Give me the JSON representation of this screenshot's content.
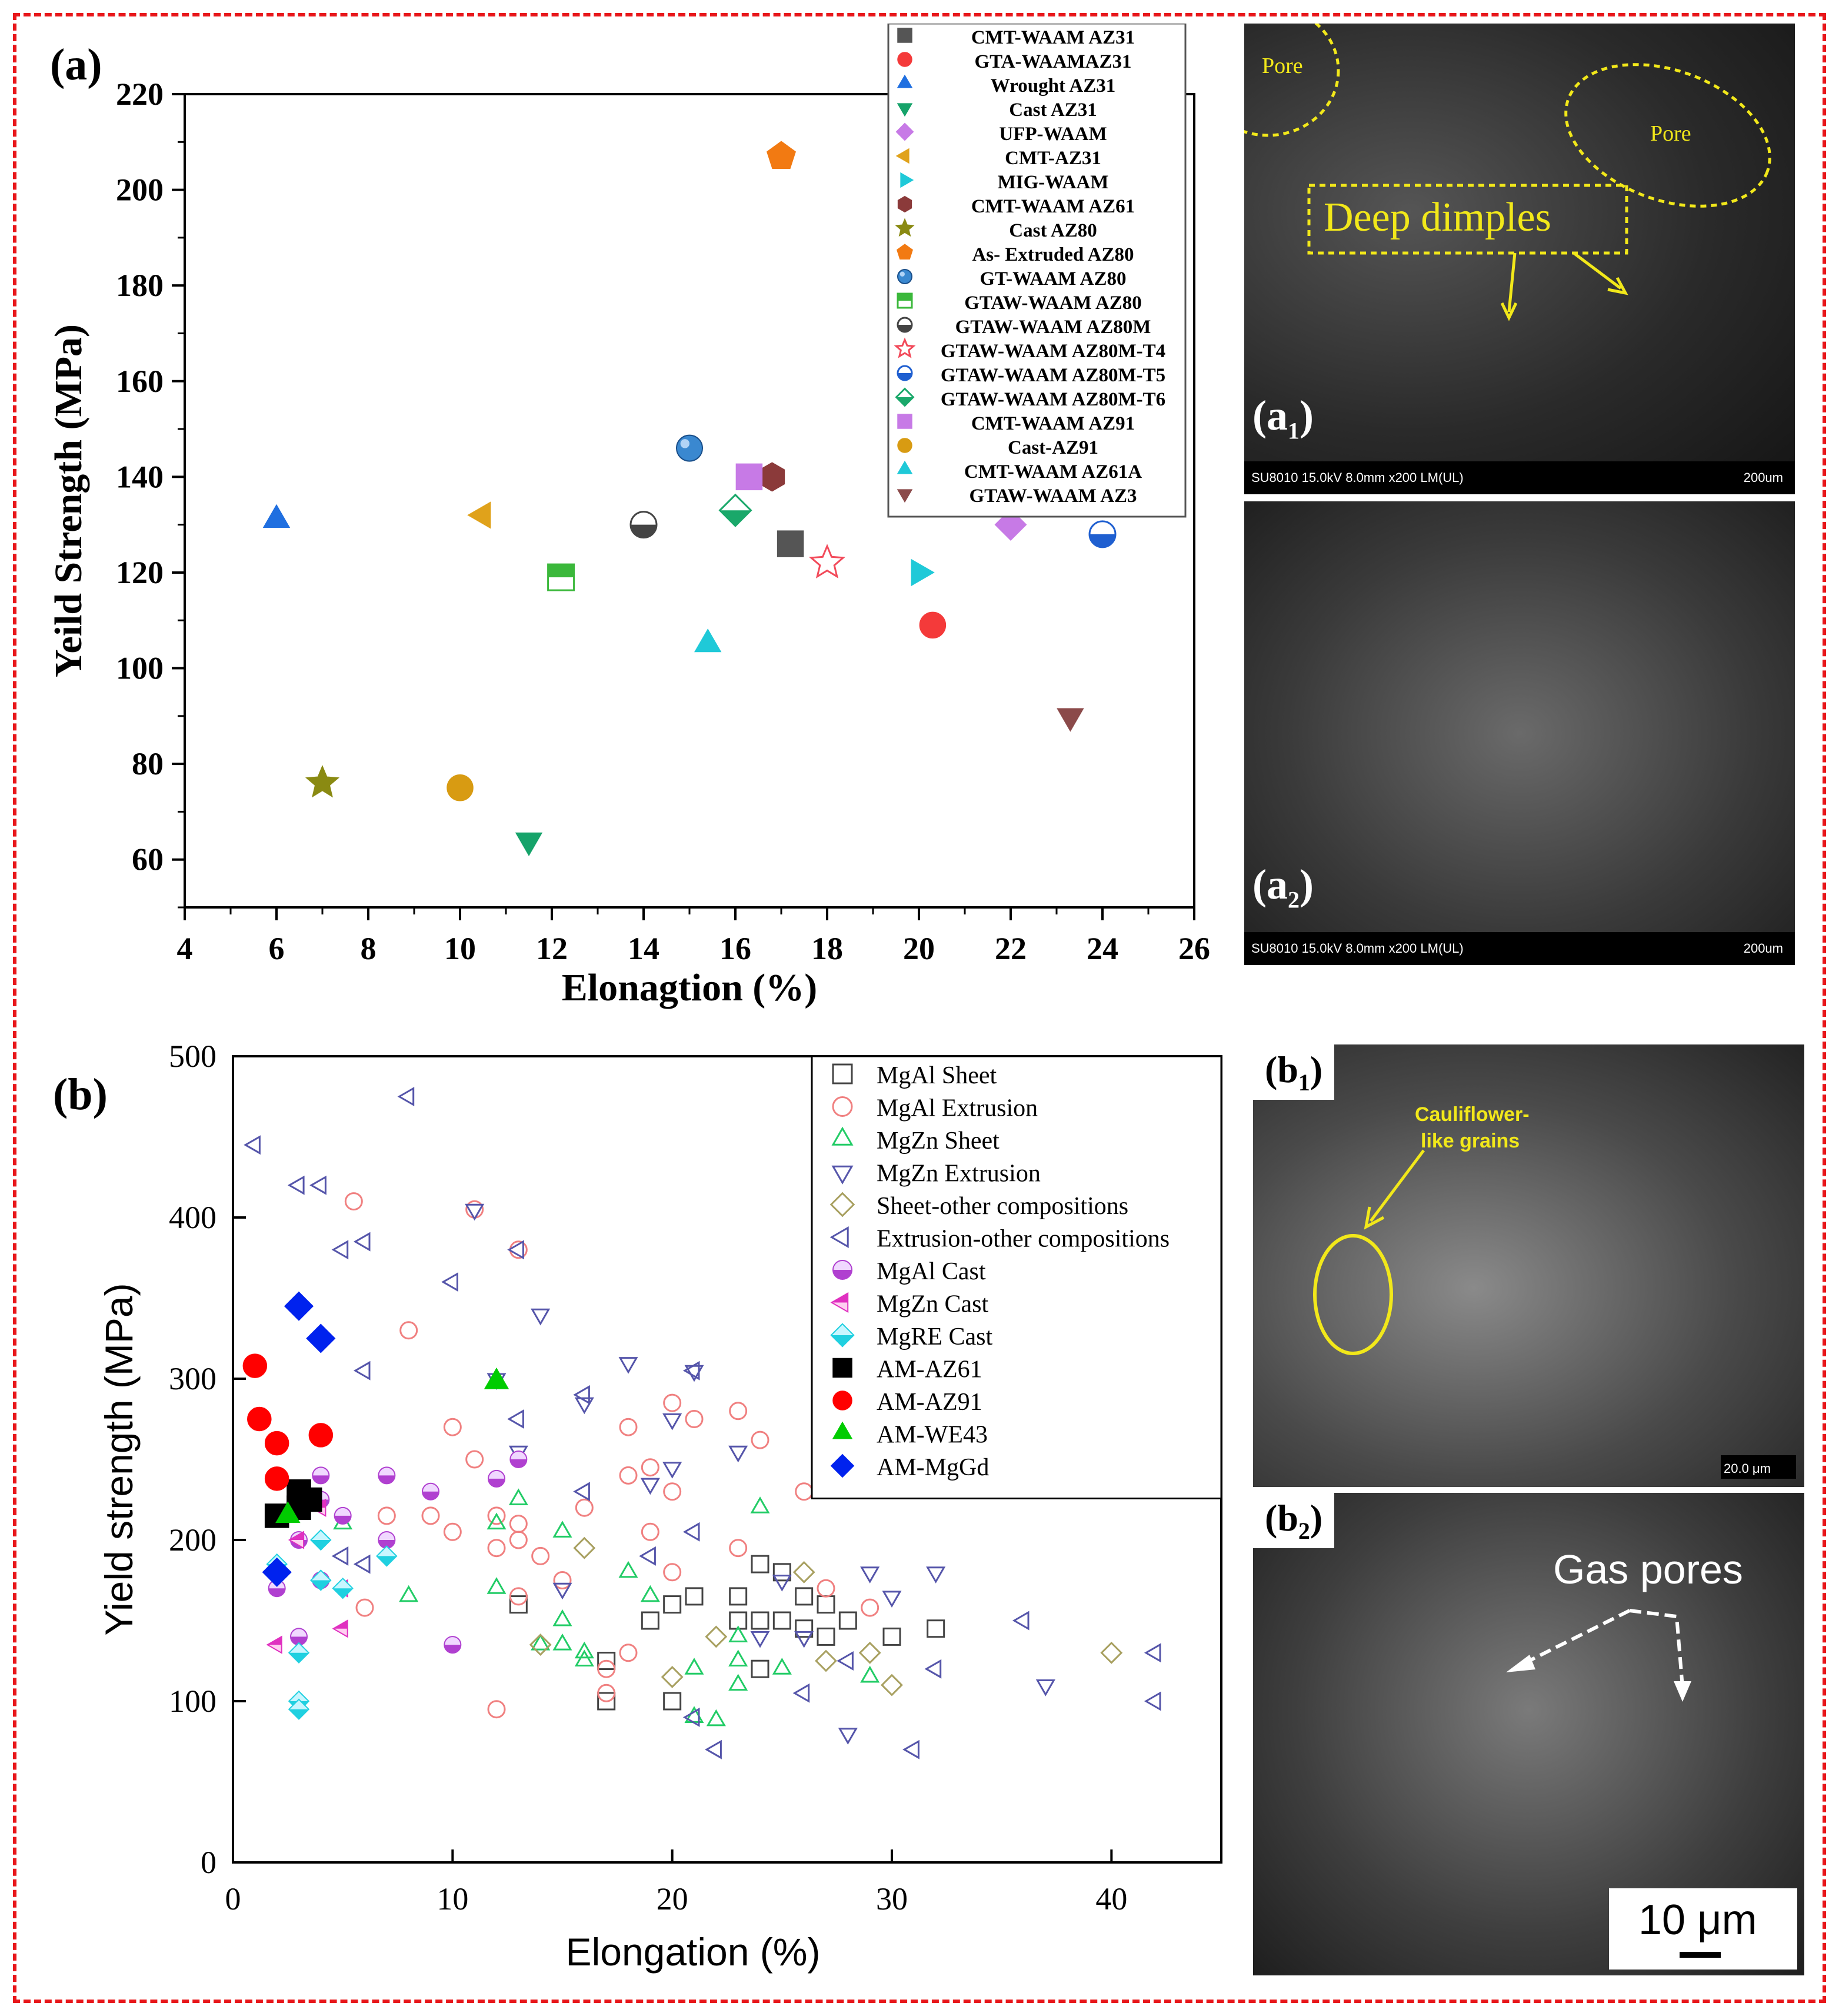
{
  "panel_a": {
    "label": "(a)",
    "sem_a1_label": "(a",
    "sem_a1_sub": "1",
    "sem_a1_close": ")",
    "sem_a2_label": "(a",
    "sem_a2_sub": "2",
    "sem_a2_close": ")",
    "sem_bar_left": "SU8010 15.0kV 8.0mm x200 LM(UL)",
    "sem_bar_right": "200um",
    "pore_label_1": "Pore",
    "pore_label_2": "Pore",
    "dimples_label": "Deep dimples"
  },
  "panel_b": {
    "label": "(b)",
    "sem_b1_label": "(b",
    "sem_b1_sub": "1",
    "sem_b1_close": ")",
    "sem_b2_label": "(b",
    "sem_b2_sub": "2",
    "sem_b2_close": ")",
    "cauliflower_label_1": "Cauliflower-",
    "cauliflower_label_2": "like grains",
    "gas_pores_label": "Gas pores",
    "scale_b1": "20.0 μm",
    "scale_b2": "10 μm"
  },
  "colors": {
    "frame": "#e8171b",
    "sem_yellow": "#f2e81a"
  },
  "chart_data": [
    {
      "type": "scatter",
      "title": "",
      "xlabel": "Elonagtion (%)",
      "ylabel": "Yeild Strength (MPa)",
      "xlim": [
        4,
        26
      ],
      "ylim": [
        50,
        220
      ],
      "xticks": [
        4,
        6,
        8,
        10,
        12,
        14,
        16,
        18,
        20,
        22,
        24,
        26
      ],
      "yticks": [
        60,
        80,
        100,
        120,
        140,
        160,
        180,
        200,
        220
      ],
      "legend_position": "top-right",
      "series": [
        {
          "name": "CMT-WAAM AZ31",
          "marker": "square",
          "color": "#555555",
          "x": 17.2,
          "y": 126
        },
        {
          "name": "GTA-WAAMAZ31",
          "marker": "circle",
          "color": "#f43a3a",
          "x": 20.3,
          "y": 109
        },
        {
          "name": "Wrought AZ31",
          "marker": "triangle-up",
          "color": "#1f6fe0",
          "x": 6.0,
          "y": 131
        },
        {
          "name": "Cast AZ31",
          "marker": "triangle-down",
          "color": "#16a36a",
          "x": 11.5,
          "y": 64
        },
        {
          "name": "UFP-WAAM",
          "marker": "diamond",
          "color": "#c77ae6",
          "x": 22.0,
          "y": 130
        },
        {
          "name": "CMT-AZ31",
          "marker": "triangle-left",
          "color": "#e0a21b",
          "x": 10.5,
          "y": 132
        },
        {
          "name": "MIG-WAAM",
          "marker": "triangle-right",
          "color": "#1fc9d8",
          "x": 20.0,
          "y": 120
        },
        {
          "name": "CMT-WAAM AZ61",
          "marker": "hexagon",
          "color": "#8b3a3a",
          "x": 16.8,
          "y": 140
        },
        {
          "name": "Cast AZ80",
          "marker": "star",
          "color": "#8a8a12",
          "x": 7.0,
          "y": 76
        },
        {
          "name": "As- Extruded AZ80",
          "marker": "pentagon",
          "color": "#f27a12",
          "x": 17.0,
          "y": 207
        },
        {
          "name": "GT-WAAM AZ80",
          "marker": "sphere",
          "color": "#3a88d0",
          "x": 15.0,
          "y": 146
        },
        {
          "name": "GTAW-WAAM AZ80",
          "marker": "half-square",
          "color": "#3bb83b",
          "x": 12.2,
          "y": 119
        },
        {
          "name": "GTAW-WAAM AZ80M",
          "marker": "half-circle",
          "color": "#444444",
          "x": 14.0,
          "y": 130
        },
        {
          "name": "GTAW-WAAM AZ80M-T4",
          "marker": "open-star",
          "color": "#f24a5a",
          "x": 18.0,
          "y": 122
        },
        {
          "name": "GTAW-WAAM AZ80M-T5",
          "marker": "half-circle",
          "color": "#1f5fd0",
          "x": 24.0,
          "y": 128
        },
        {
          "name": "GTAW-WAAM AZ80M-T6",
          "marker": "half-diamond",
          "color": "#1aa86a",
          "x": 16.0,
          "y": 133
        },
        {
          "name": "CMT-WAAM AZ91",
          "marker": "square",
          "color": "#c77ae6",
          "x": 16.3,
          "y": 140
        },
        {
          "name": "Cast-AZ91",
          "marker": "circle",
          "color": "#d89b12",
          "x": 10.0,
          "y": 75
        },
        {
          "name": "CMT-WAAM AZ61A",
          "marker": "triangle-up",
          "color": "#1fc9d8",
          "x": 15.4,
          "y": 105
        },
        {
          "name": "GTAW-WAAM AZ3",
          "marker": "triangle-down",
          "color": "#8b4a4a",
          "x": 23.3,
          "y": 90
        }
      ]
    },
    {
      "type": "scatter",
      "title": "",
      "xlabel": "Elongation (%)",
      "ylabel": "Yield strength (MPa)",
      "xlim": [
        0,
        45
      ],
      "ylim": [
        0,
        500
      ],
      "xticks": [
        0,
        10,
        20,
        30,
        40
      ],
      "yticks": [
        0,
        100,
        200,
        300,
        400,
        500
      ],
      "legend_position": "top-right",
      "series": [
        {
          "name": "MgAl Sheet",
          "marker": "open-square",
          "color": "#444444",
          "points": [
            [
              13,
              160
            ],
            [
              17,
              100
            ],
            [
              20,
              100
            ],
            [
              20,
              160
            ],
            [
              21,
              165
            ],
            [
              23,
              165
            ],
            [
              23,
              150
            ],
            [
              24,
              185
            ],
            [
              24,
              150
            ],
            [
              25,
              180
            ],
            [
              25,
              150
            ],
            [
              26,
              165
            ],
            [
              26,
              145
            ],
            [
              27,
              160
            ],
            [
              27,
              140
            ],
            [
              28,
              150
            ],
            [
              30,
              140
            ],
            [
              32,
              145
            ],
            [
              19,
              150
            ],
            [
              17,
              125
            ],
            [
              24,
              120
            ]
          ]
        },
        {
          "name": "MgAl Extrusion",
          "marker": "open-circle",
          "color": "#f08080",
          "points": [
            [
              5.5,
              410
            ],
            [
              11,
              405
            ],
            [
              13,
              380
            ],
            [
              8,
              330
            ],
            [
              10,
              270
            ],
            [
              11,
              250
            ],
            [
              12,
              215
            ],
            [
              12,
              195
            ],
            [
              13,
              210
            ],
            [
              13,
              200
            ],
            [
              13,
              165
            ],
            [
              14,
              190
            ],
            [
              15,
              175
            ],
            [
              16,
              220
            ],
            [
              17,
              120
            ],
            [
              17,
              105
            ],
            [
              18,
              270
            ],
            [
              18,
              240
            ],
            [
              18,
              130
            ],
            [
              19,
              245
            ],
            [
              19,
              205
            ],
            [
              20,
              285
            ],
            [
              20,
              230
            ],
            [
              20,
              180
            ],
            [
              21,
              275
            ],
            [
              23,
              280
            ],
            [
              23,
              195
            ],
            [
              24,
              262
            ],
            [
              26,
              230
            ],
            [
              27,
              170
            ],
            [
              29,
              158
            ],
            [
              12,
              95
            ],
            [
              9,
              215
            ],
            [
              7,
              215
            ],
            [
              6,
              158
            ],
            [
              10,
              205
            ]
          ]
        },
        {
          "name": "MgZn Sheet",
          "marker": "open-triangle-up",
          "color": "#22cc66",
          "points": [
            [
              5,
              210
            ],
            [
              8,
              165
            ],
            [
              12,
              210
            ],
            [
              12,
              170
            ],
            [
              13,
              225
            ],
            [
              14,
              135
            ],
            [
              15,
              205
            ],
            [
              15,
              150
            ],
            [
              15,
              135
            ],
            [
              16,
              130
            ],
            [
              16,
              125
            ],
            [
              18,
              180
            ],
            [
              19,
              165
            ],
            [
              21,
              120
            ],
            [
              22,
              88
            ],
            [
              23,
              140
            ],
            [
              23,
              125
            ],
            [
              23,
              110
            ],
            [
              24,
              220
            ],
            [
              25,
              120
            ],
            [
              29,
              115
            ],
            [
              21,
              90
            ]
          ]
        },
        {
          "name": "MgZn Extrusion",
          "marker": "open-triangle-down",
          "color": "#5555aa",
          "points": [
            [
              11,
              405
            ],
            [
              14,
              340
            ],
            [
              18,
              310
            ],
            [
              20,
              275
            ],
            [
              20,
              245
            ],
            [
              23,
              255
            ],
            [
              24,
              140
            ],
            [
              25,
              175
            ],
            [
              26,
              140
            ],
            [
              28,
              80
            ],
            [
              29,
              180
            ],
            [
              30,
              165
            ],
            [
              32,
              180
            ],
            [
              37,
              110
            ],
            [
              19,
              235
            ],
            [
              15,
              170
            ],
            [
              16,
              285
            ],
            [
              21,
              305
            ],
            [
              13,
              255
            ],
            [
              12,
              300
            ]
          ]
        },
        {
          "name": "Sheet-other compositions",
          "marker": "open-diamond",
          "color": "#a8a060",
          "points": [
            [
              14,
              135
            ],
            [
              16,
              195
            ],
            [
              20,
              115
            ],
            [
              22,
              140
            ],
            [
              26,
              180
            ],
            [
              27,
              125
            ],
            [
              29,
              130
            ],
            [
              30,
              110
            ],
            [
              40,
              130
            ]
          ]
        },
        {
          "name": "Extrusion-other compositions",
          "marker": "open-triangle-left",
          "color": "#5555aa",
          "points": [
            [
              1,
              445
            ],
            [
              3,
              420
            ],
            [
              4,
              420
            ],
            [
              8,
              475
            ],
            [
              5,
              380
            ],
            [
              6,
              385
            ],
            [
              10,
              360
            ],
            [
              6,
              305
            ],
            [
              13,
              380
            ],
            [
              13,
              275
            ],
            [
              16,
              290
            ],
            [
              16,
              230
            ],
            [
              21,
              305
            ],
            [
              21,
              205
            ],
            [
              19,
              190
            ],
            [
              22,
              70
            ],
            [
              21,
              90
            ],
            [
              26,
              105
            ],
            [
              28,
              125
            ],
            [
              31,
              70
            ],
            [
              32,
              120
            ],
            [
              36,
              150
            ],
            [
              42,
              100
            ],
            [
              42,
              130
            ],
            [
              6,
              185
            ],
            [
              5,
              190
            ]
          ]
        },
        {
          "name": "MgAl Cast",
          "marker": "half-circle-filled",
          "color": "#b040d0",
          "points": [
            [
              2,
              170
            ],
            [
              3,
              200
            ],
            [
              3,
              140
            ],
            [
              4,
              240
            ],
            [
              4,
              225
            ],
            [
              4,
              175
            ],
            [
              5,
              215
            ],
            [
              7,
              240
            ],
            [
              7,
              200
            ],
            [
              9,
              230
            ],
            [
              10,
              135
            ],
            [
              12,
              238
            ],
            [
              13,
              250
            ]
          ]
        },
        {
          "name": "MgZn Cast",
          "marker": "half-triangle-left",
          "color": "#e030c0",
          "points": [
            [
              2,
              135
            ],
            [
              3,
              200
            ],
            [
              4,
              220
            ],
            [
              5,
              145
            ],
            [
              5,
              170
            ]
          ]
        },
        {
          "name": "MgRE Cast",
          "marker": "half-diamond-filled",
          "color": "#20d0e0",
          "points": [
            [
              2,
              185
            ],
            [
              3,
              130
            ],
            [
              3,
              100
            ],
            [
              3,
              95
            ],
            [
              4,
              200
            ],
            [
              4,
              175
            ],
            [
              5,
              170
            ],
            [
              7,
              190
            ]
          ]
        },
        {
          "name": "AM-AZ61",
          "marker": "square",
          "color": "#000000",
          "points": [
            [
              2,
              215
            ],
            [
              3,
              230
            ],
            [
              3,
              220
            ],
            [
              3.5,
              225
            ]
          ]
        },
        {
          "name": "AM-AZ91",
          "marker": "circle",
          "color": "#ff0000",
          "points": [
            [
              1,
              308
            ],
            [
              1.2,
              275
            ],
            [
              2,
              260
            ],
            [
              2,
              238
            ],
            [
              4,
              265
            ]
          ]
        },
        {
          "name": "AM-WE43",
          "marker": "triangle-up",
          "color": "#00cc00",
          "points": [
            [
              2.5,
              215
            ],
            [
              12,
              298
            ]
          ]
        },
        {
          "name": "AM-MgGd",
          "marker": "diamond",
          "color": "#0022ee",
          "points": [
            [
              3,
              345
            ],
            [
              4,
              325
            ],
            [
              2,
              180
            ]
          ]
        }
      ]
    }
  ]
}
